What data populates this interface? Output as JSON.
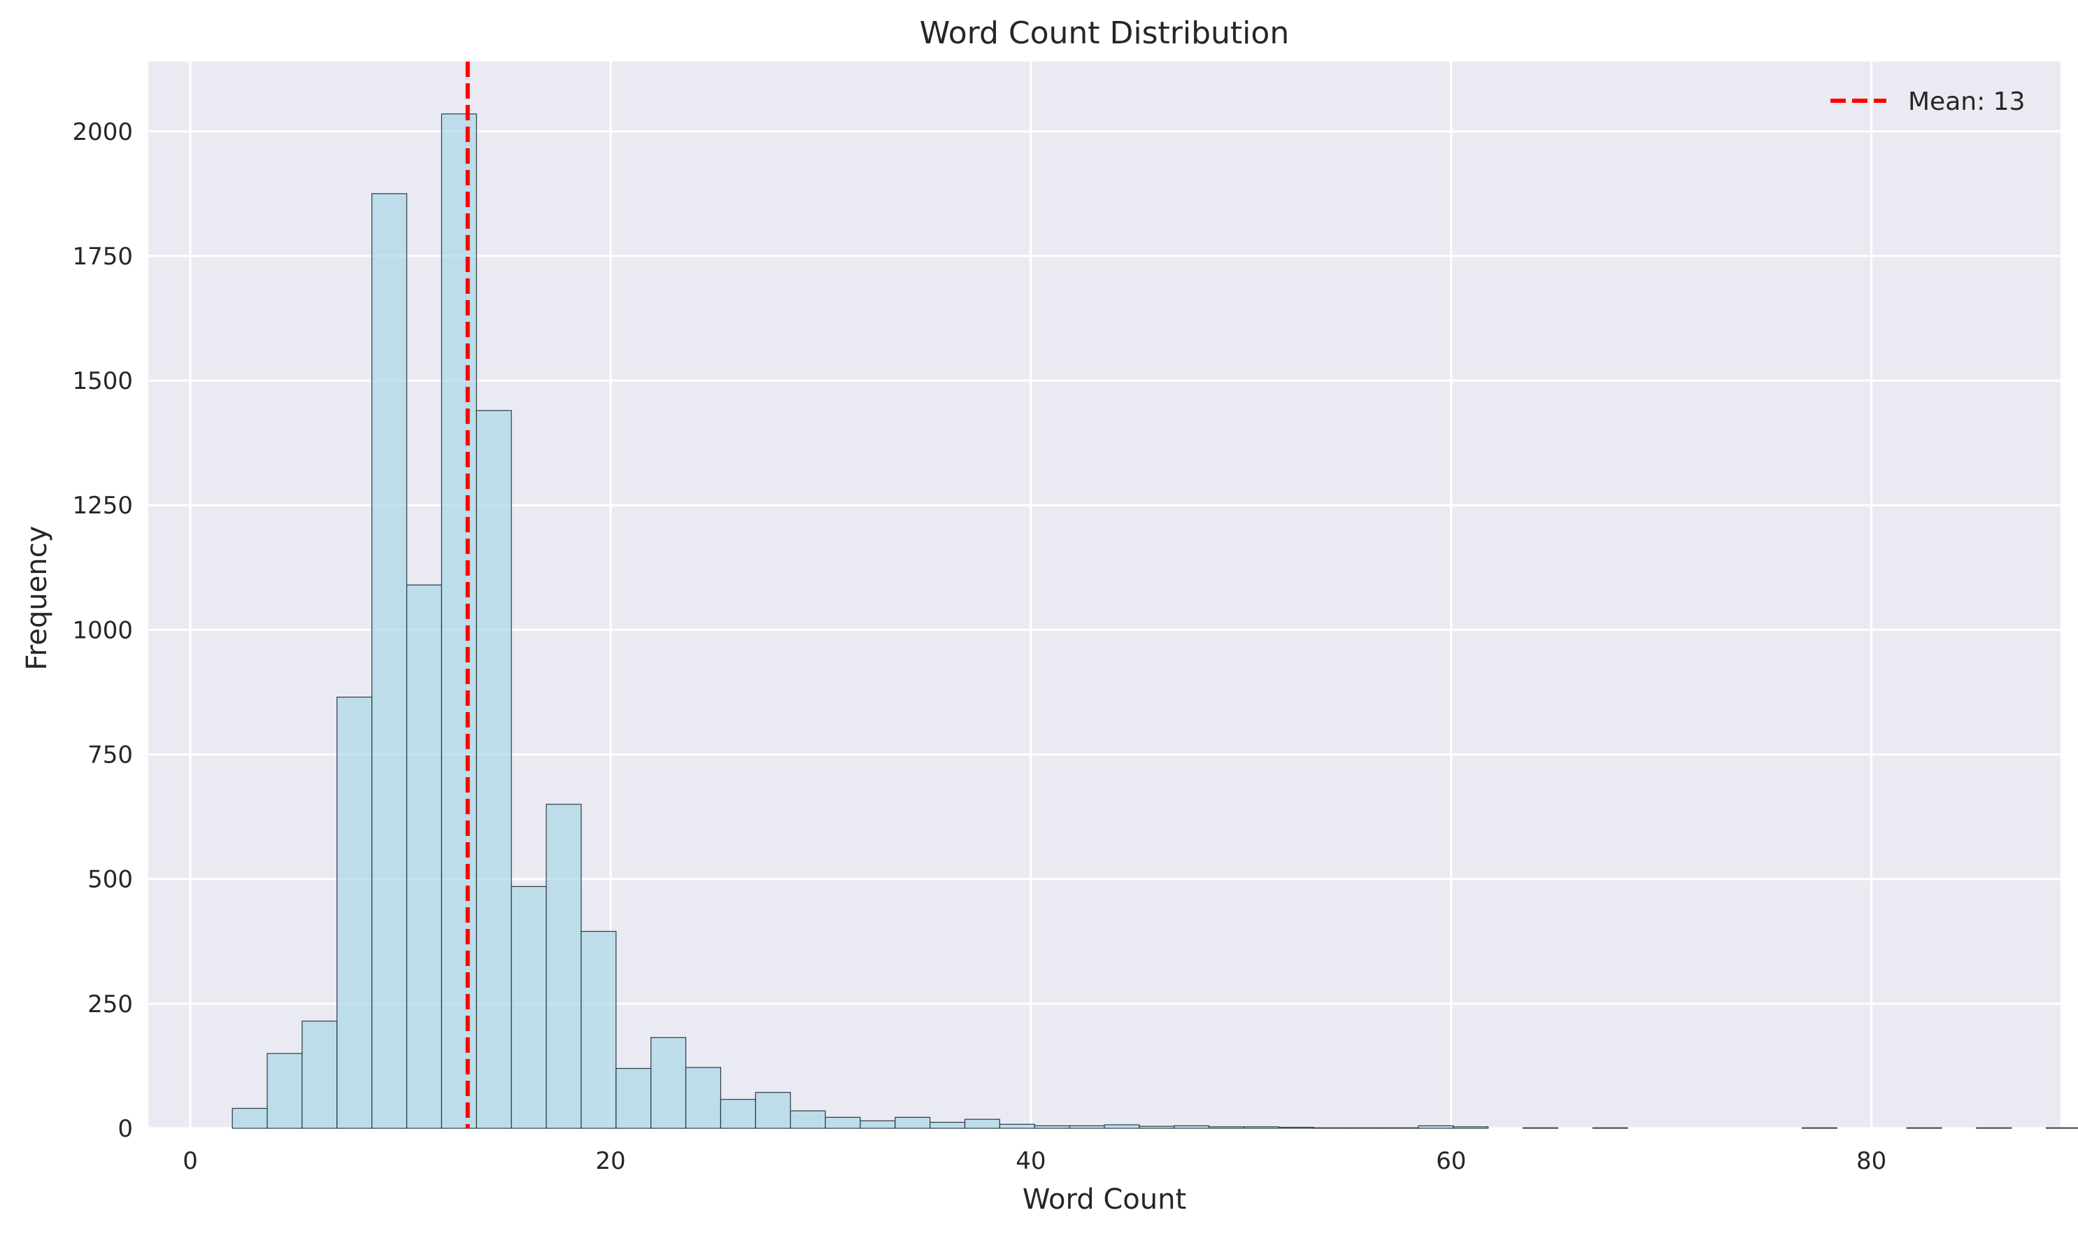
{
  "chart_data": {
    "type": "bar",
    "title": "Word Count Distribution",
    "xlabel": "Word Count",
    "ylabel": "Frequency",
    "xlim": [
      -2,
      89
    ],
    "ylim": [
      0,
      2140
    ],
    "xticks": [
      0,
      20,
      40,
      60,
      80
    ],
    "yticks": [
      0,
      250,
      500,
      750,
      1000,
      1250,
      1500,
      1750,
      2000
    ],
    "grid": true,
    "legend_position": "top-right",
    "bins": {
      "start": 2,
      "width": 1.66,
      "values": [
        40,
        150,
        215,
        865,
        1875,
        1090,
        2035,
        1440,
        485,
        650,
        395,
        120,
        182,
        122,
        58,
        72,
        35,
        22,
        15,
        22,
        12,
        18,
        8,
        5,
        5,
        7,
        4,
        5,
        3,
        3,
        2,
        1,
        1,
        1,
        5,
        3,
        0,
        1,
        0,
        1,
        0,
        0,
        0,
        0,
        0,
        1,
        0,
        0,
        1,
        0,
        1,
        0,
        1
      ]
    },
    "mean": {
      "value": 13.2,
      "label": "Mean: 13",
      "color": "#ff0000"
    },
    "bar_color": "#add8e6",
    "background_color": "#eaeaf2"
  }
}
